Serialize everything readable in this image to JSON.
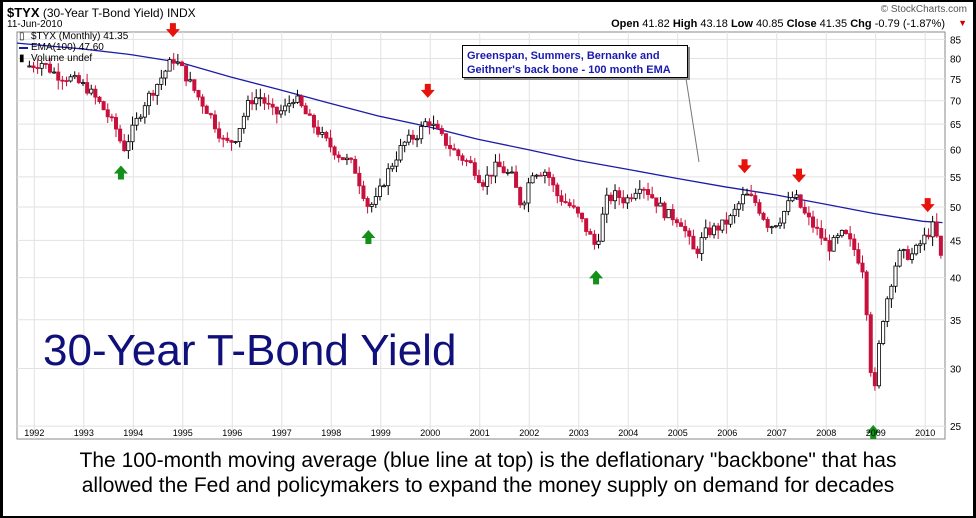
{
  "header": {
    "symbol": "$TYX",
    "description": "(30-Year T-Bond Yield)",
    "exchange": "INDX",
    "date": "11-Jun-2010",
    "brand": "© StockCharts.com",
    "open_label": "Open",
    "open": "41.82",
    "high_label": "High",
    "high": "43.18",
    "low_label": "Low",
    "low": "40.85",
    "close_label": "Close",
    "close": "41.35",
    "chg_label": "Chg",
    "chg": "-0.79 (-1.87%)",
    "chg_marker": "▼"
  },
  "legend": {
    "price": "$TYX (Monthly) 41.35",
    "ema": "EMA(100) 47.60",
    "volume": "Volume undef"
  },
  "big_title": "30-Year T-Bond Yield",
  "note": "Greenspan, Summers, Bernanke and Geithner's back bone - 100 month EMA",
  "caption": {
    "line1": "The 100-month moving average (blue line at top) is the deflationary \"backbone\" that has",
    "line2": "allowed the Fed and policymakers to expand the money supply on demand for decades"
  },
  "colors": {
    "up_candle": "#000000",
    "down_candle": "#c8103c",
    "ema_line": "#1c1ca8",
    "red_arrow": "#e8120c",
    "green_arrow": "#13901a",
    "title_blue": "#10107a"
  },
  "chart_data": {
    "type": "candlestick",
    "x_tick_labels": [
      "1992",
      "1993",
      "1994",
      "1995",
      "1996",
      "1997",
      "1998",
      "1999",
      "2000",
      "2001",
      "2002",
      "2003",
      "2004",
      "2005",
      "2006",
      "2007",
      "2008",
      "2009",
      "2010"
    ],
    "y_tick_labels": [
      "25",
      "30",
      "35",
      "40",
      "45",
      "50",
      "55",
      "60",
      "65",
      "70",
      "75",
      "80",
      "85"
    ],
    "y_scale": "log",
    "ylim": [
      24,
      87
    ],
    "x_start": 1991.7,
    "x_end": 2010.45,
    "grid": true,
    "close_series": {
      "name": "$TYX (Monthly)",
      "points": [
        [
          1991.9,
          78
        ],
        [
          1992.2,
          79
        ],
        [
          1992.5,
          76
        ],
        [
          1992.8,
          75
        ],
        [
          1993.1,
          73
        ],
        [
          1993.4,
          69
        ],
        [
          1993.7,
          64
        ],
        [
          1993.85,
          60
        ],
        [
          1994.0,
          63
        ],
        [
          1994.3,
          70
        ],
        [
          1994.6,
          75
        ],
        [
          1994.85,
          80
        ],
        [
          1995.0,
          78
        ],
        [
          1995.3,
          72
        ],
        [
          1995.6,
          67
        ],
        [
          1995.9,
          61
        ],
        [
          1996.1,
          62
        ],
        [
          1996.4,
          70
        ],
        [
          1996.6,
          71
        ],
        [
          1996.9,
          67
        ],
        [
          1997.1,
          68
        ],
        [
          1997.3,
          71
        ],
        [
          1997.6,
          66
        ],
        [
          1997.9,
          62
        ],
        [
          1998.2,
          59
        ],
        [
          1998.5,
          57
        ],
        [
          1998.8,
          50
        ],
        [
          1998.95,
          51
        ],
        [
          1999.2,
          56
        ],
        [
          1999.5,
          61
        ],
        [
          1999.8,
          63
        ],
        [
          2000.0,
          66
        ],
        [
          2000.3,
          62
        ],
        [
          2000.6,
          59
        ],
        [
          2000.9,
          57
        ],
        [
          2001.1,
          54
        ],
        [
          2001.4,
          57
        ],
        [
          2001.7,
          55
        ],
        [
          2001.9,
          50
        ],
        [
          2002.1,
          56
        ],
        [
          2002.4,
          56
        ],
        [
          2002.6,
          52
        ],
        [
          2002.9,
          50
        ],
        [
          2003.1,
          48
        ],
        [
          2003.4,
          44
        ],
        [
          2003.6,
          51
        ],
        [
          2003.8,
          52
        ],
        [
          2004.0,
          51
        ],
        [
          2004.3,
          54
        ],
        [
          2004.5,
          52
        ],
        [
          2004.8,
          49
        ],
        [
          2005.1,
          48
        ],
        [
          2005.4,
          43
        ],
        [
          2005.6,
          46
        ],
        [
          2005.9,
          47
        ],
        [
          2006.1,
          48
        ],
        [
          2006.4,
          52
        ],
        [
          2006.6,
          51
        ],
        [
          2006.9,
          47
        ],
        [
          2007.1,
          48
        ],
        [
          2007.4,
          52
        ],
        [
          2007.6,
          49
        ],
        [
          2007.9,
          46
        ],
        [
          2008.1,
          44
        ],
        [
          2008.4,
          46
        ],
        [
          2008.6,
          44
        ],
        [
          2008.8,
          41
        ],
        [
          2008.9,
          34
        ],
        [
          2009.0,
          26.5
        ],
        [
          2009.15,
          34
        ],
        [
          2009.3,
          38
        ],
        [
          2009.5,
          43
        ],
        [
          2009.8,
          43
        ],
        [
          2010.0,
          45
        ],
        [
          2010.2,
          47
        ],
        [
          2010.3,
          45
        ],
        [
          2010.4,
          41.35
        ]
      ]
    },
    "ema_series": {
      "name": "EMA(100)",
      "points": [
        [
          1991.7,
          84
        ],
        [
          1993,
          82.5
        ],
        [
          1994,
          81
        ],
        [
          1995,
          79
        ],
        [
          1996,
          75.5
        ],
        [
          1997,
          72.5
        ],
        [
          1998,
          69.5
        ],
        [
          1999,
          66.7
        ],
        [
          2000,
          64.5
        ],
        [
          2001,
          62
        ],
        [
          2002,
          60
        ],
        [
          2003,
          58
        ],
        [
          2004,
          56.4
        ],
        [
          2005,
          54.8
        ],
        [
          2006,
          53.3
        ],
        [
          2007,
          52
        ],
        [
          2008,
          50.5
        ],
        [
          2009,
          49
        ],
        [
          2010,
          47.8
        ],
        [
          2010.4,
          47.6
        ]
      ]
    },
    "red_arrows_at": [
      1994.85,
      2000.0,
      2006.4,
      2007.5,
      2010.1
    ],
    "green_arrows_at": [
      1993.8,
      1998.8,
      2003.4,
      2009.0
    ]
  }
}
